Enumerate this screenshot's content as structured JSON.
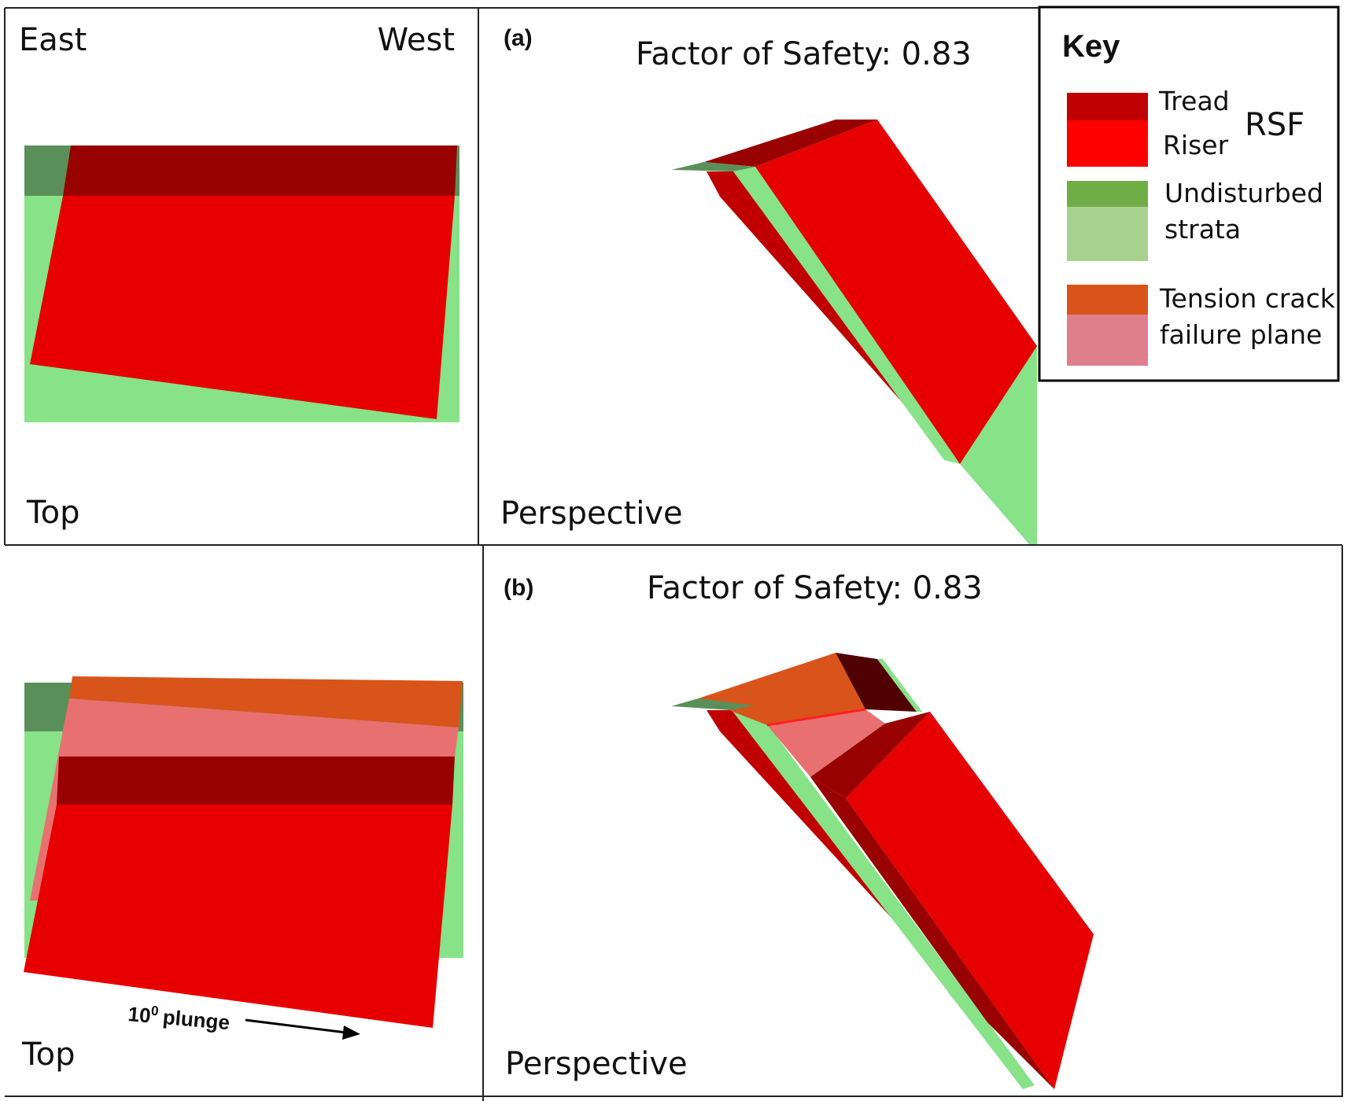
{
  "panel_a": {
    "letter": "(a)",
    "fos_label": "Factor of Safety: 0.83",
    "top": {
      "east": "East",
      "west": "West",
      "view_label": "Top"
    },
    "perspective": {
      "view_label": "Perspective"
    }
  },
  "panel_b": {
    "letter": "(b)",
    "fos_label": "Factor of Safety: 0.83",
    "top": {
      "view_label": "Top",
      "plunge_value": "10",
      "plunge_superscript": "0",
      "plunge_text": "plunge"
    },
    "perspective": {
      "view_label": "Perspective"
    }
  },
  "key": {
    "title": "Key",
    "rsf_label": "RSF",
    "items": [
      {
        "label": "Tread",
        "color": "#c00000"
      },
      {
        "label": "Riser",
        "color": "#ff0000"
      },
      {
        "label": "Undisturbed",
        "color": "#70ad47"
      },
      {
        "label": "strata",
        "color": "#a9d18e"
      },
      {
        "label": "Tension crack",
        "color": "#d9541a"
      },
      {
        "label": "failure plane",
        "color": "#e07f8c"
      }
    ]
  },
  "colors": {
    "strata_light": "#88e288",
    "strata_dark": "#5a8f5a",
    "riser": "#e60000",
    "tread": "#990000",
    "tread_deep": "#500000",
    "tension_crack": "#d9541a",
    "failure_plane": "#e87070",
    "border": "#222222"
  }
}
